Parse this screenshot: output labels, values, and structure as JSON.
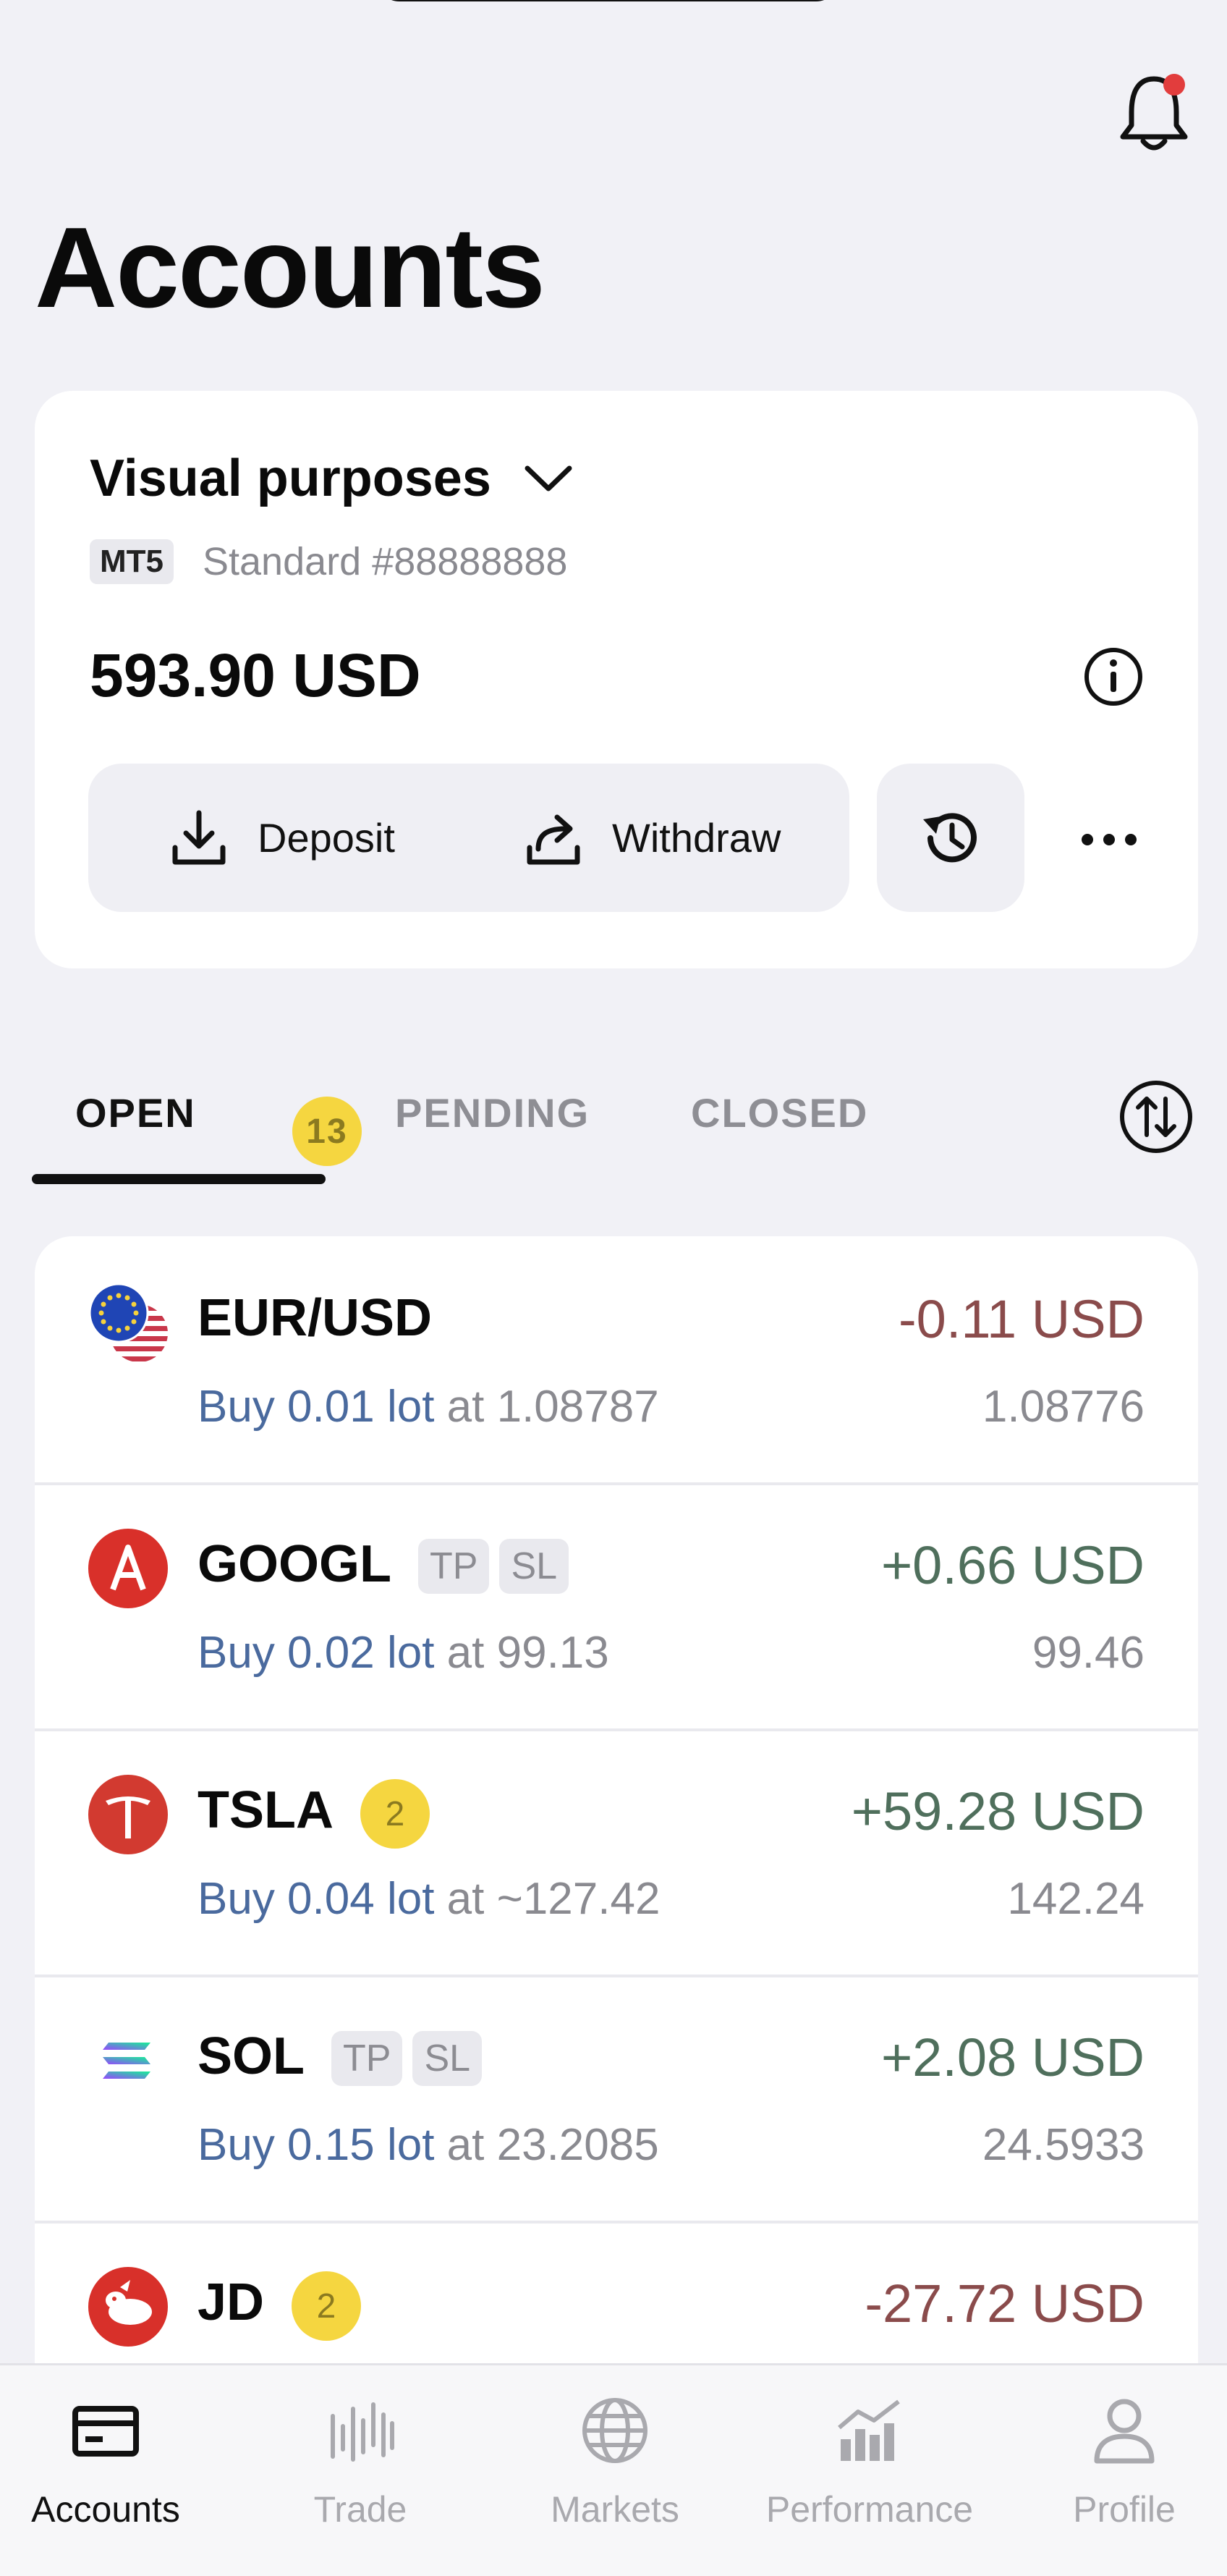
{
  "header": {
    "title": "Accounts"
  },
  "account": {
    "name": "Visual purposes",
    "platform": "MT5",
    "type": "Standard #88888888",
    "balance": "593.90 USD",
    "deposit_label": "Deposit",
    "withdraw_label": "Withdraw"
  },
  "tabs": [
    {
      "label": "OPEN",
      "count": "13",
      "active": true
    },
    {
      "label": "PENDING",
      "active": false
    },
    {
      "label": "CLOSED",
      "active": false
    }
  ],
  "positions": [
    {
      "symbol": "EUR/USD",
      "icon": "eur-usd-flag-icon",
      "tags": [],
      "badge": null,
      "pnl": "-0.11 USD",
      "side_lot": "Buy 0.01 lot",
      "at": "at 1.08787",
      "current": "1.08776"
    },
    {
      "symbol": "GOOGL",
      "icon": "alphabet-icon",
      "tags": [
        "TP",
        "SL"
      ],
      "badge": null,
      "pnl": "+0.66 USD",
      "side_lot": "Buy 0.02 lot",
      "at": "at 99.13",
      "current": "99.46"
    },
    {
      "symbol": "TSLA",
      "icon": "tesla-icon",
      "tags": [],
      "badge": "2",
      "pnl": "+59.28 USD",
      "side_lot": "Buy 0.04 lot",
      "at": "at ~127.42",
      "current": "142.24"
    },
    {
      "symbol": "SOL",
      "icon": "solana-icon",
      "tags": [
        "TP",
        "SL"
      ],
      "badge": null,
      "pnl": "+2.08 USD",
      "side_lot": "Buy 0.15 lot",
      "at": "at 23.2085",
      "current": "24.5933"
    },
    {
      "symbol": "JD",
      "icon": "jd-icon",
      "tags": [],
      "badge": "2",
      "pnl": "-27.72 USD",
      "side_lot": "",
      "at": "",
      "current": ""
    }
  ],
  "nav": [
    {
      "label": "Accounts",
      "icon": "wallet-icon",
      "active": true
    },
    {
      "label": "Trade",
      "icon": "candles-icon",
      "active": false
    },
    {
      "label": "Markets",
      "icon": "globe-icon",
      "active": false
    },
    {
      "label": "Performance",
      "icon": "chart-icon",
      "active": false
    },
    {
      "label": "Profile",
      "icon": "user-icon",
      "active": false
    }
  ],
  "colors": {
    "negative": "#8a4b4b",
    "positive": "#4f6f5c",
    "link": "#4a6a9e",
    "badge": "#f5d640",
    "notification_dot": "#e23d3d"
  }
}
